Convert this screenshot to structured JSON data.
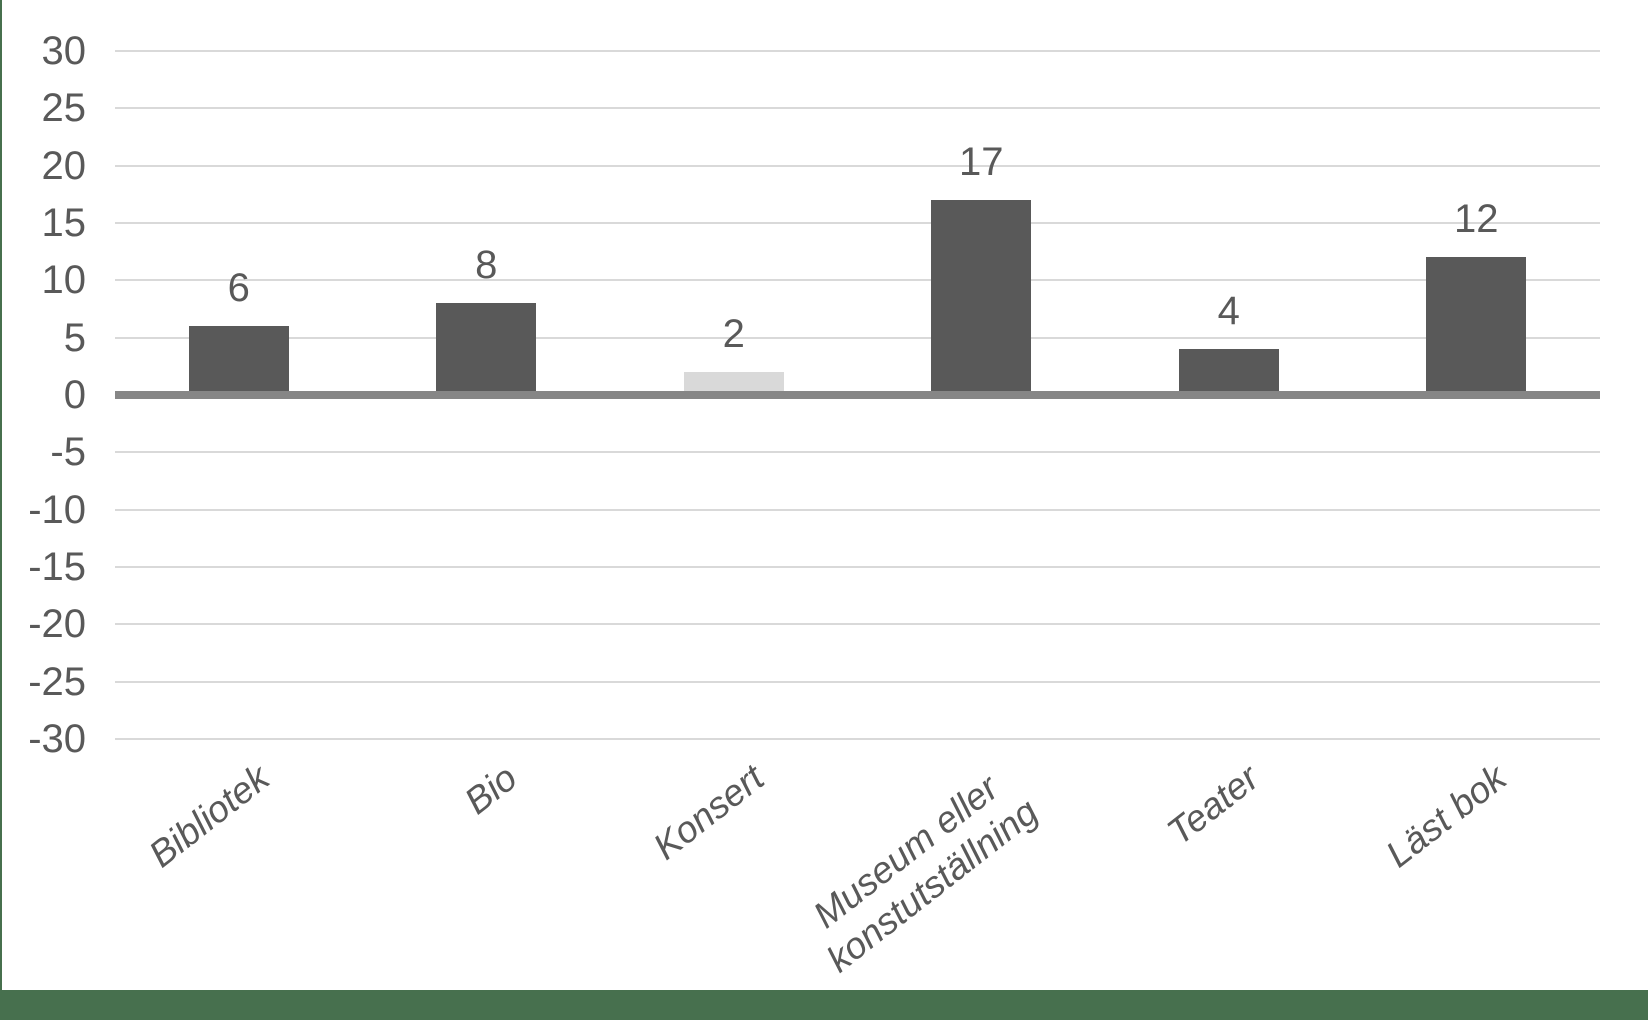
{
  "colors": {
    "bar_default": "#595959",
    "bar_muted": "#d9d9d9",
    "gridline": "#d9d9d9",
    "zero_axis": "#868686",
    "text": "#595959",
    "accent_green": "#47704e",
    "background": "#ffffff"
  },
  "frame": {
    "left_edge_color": "#47704e",
    "footer_bar_color": "#47704e"
  },
  "chart_data": {
    "type": "bar",
    "title": "",
    "xlabel": "",
    "ylabel": "",
    "categories": [
      "Bibliotek",
      "Bio",
      "Konsert",
      "Museum eller\nkonstutställning",
      "Teater",
      "Läst bok"
    ],
    "values": [
      6,
      8,
      2,
      17,
      4,
      12
    ],
    "data_labels": [
      "6",
      "8",
      "2",
      "17",
      "4",
      "12"
    ],
    "bar_colors": [
      "#595959",
      "#595959",
      "#d9d9d9",
      "#595959",
      "#595959",
      "#595959"
    ],
    "yticks": [
      30,
      25,
      20,
      15,
      10,
      5,
      0,
      -5,
      -10,
      -15,
      -20,
      -25,
      -30
    ],
    "ylim": [
      -30,
      30
    ],
    "grid": true,
    "legend": false,
    "x_labels_rotated_deg": -38,
    "x_labels_italic": true
  }
}
